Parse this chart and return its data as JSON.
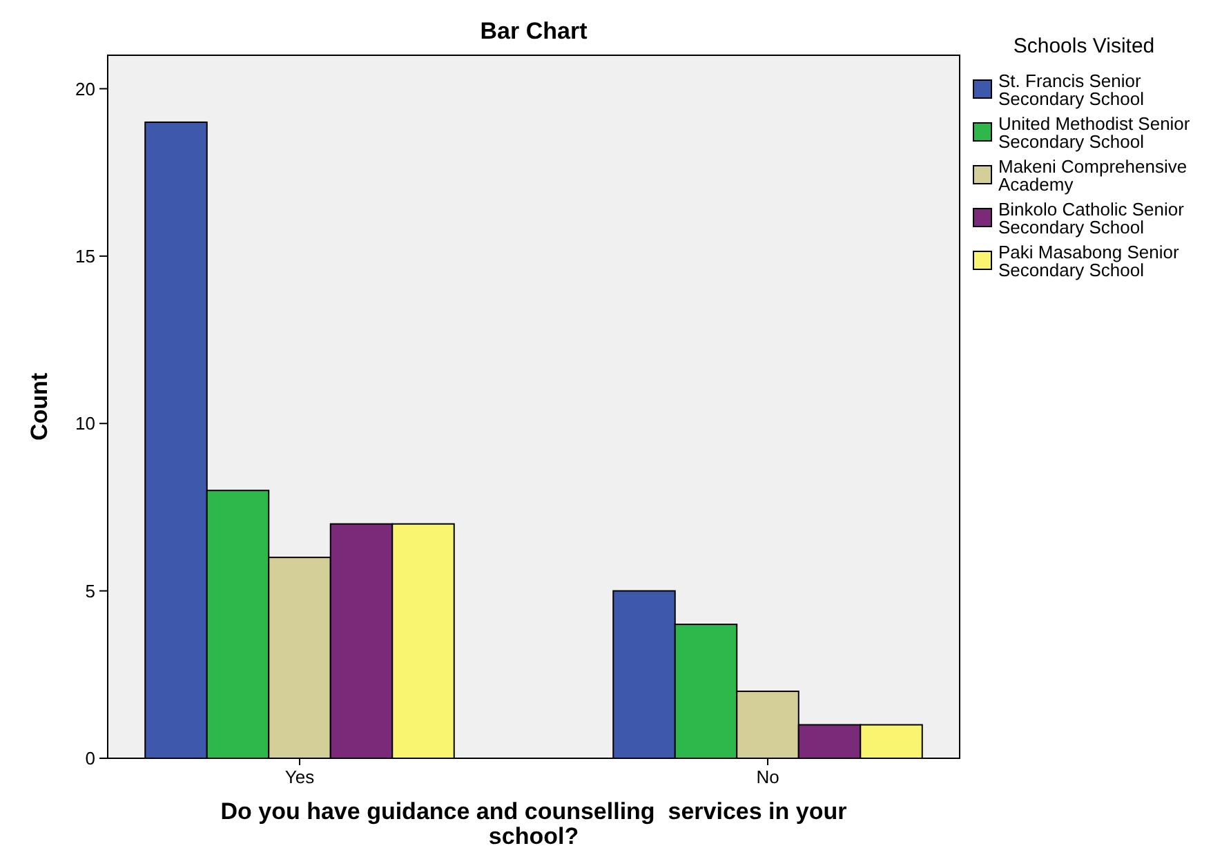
{
  "chart_data": {
    "type": "bar",
    "title": "Bar Chart",
    "xlabel": "Do you have guidance and counselling  services in your school?",
    "ylabel": "Count",
    "legend_title": "Schools Visited",
    "categories": [
      "Yes",
      "No"
    ],
    "ylim": [
      0,
      21
    ],
    "yticks": [
      0,
      5,
      10,
      15,
      20
    ],
    "grid": false,
    "legend": "right",
    "series": [
      {
        "name": "St. Francis Senior Secondary School",
        "color": "#3e58ac",
        "values": [
          19,
          5
        ]
      },
      {
        "name": "United Methodist Senior Secondary School",
        "color": "#2eb84b",
        "values": [
          8,
          4
        ]
      },
      {
        "name": "Makeni Comprehensive Academy",
        "color": "#d4cf98",
        "values": [
          6,
          2
        ]
      },
      {
        "name": "Binkolo Catholic Senior Secondary School",
        "color": "#7b2a7a",
        "values": [
          7,
          1
        ]
      },
      {
        "name": "Paki Masabong Senior Secondary School",
        "color": "#faf570",
        "values": [
          7,
          1
        ]
      }
    ]
  }
}
